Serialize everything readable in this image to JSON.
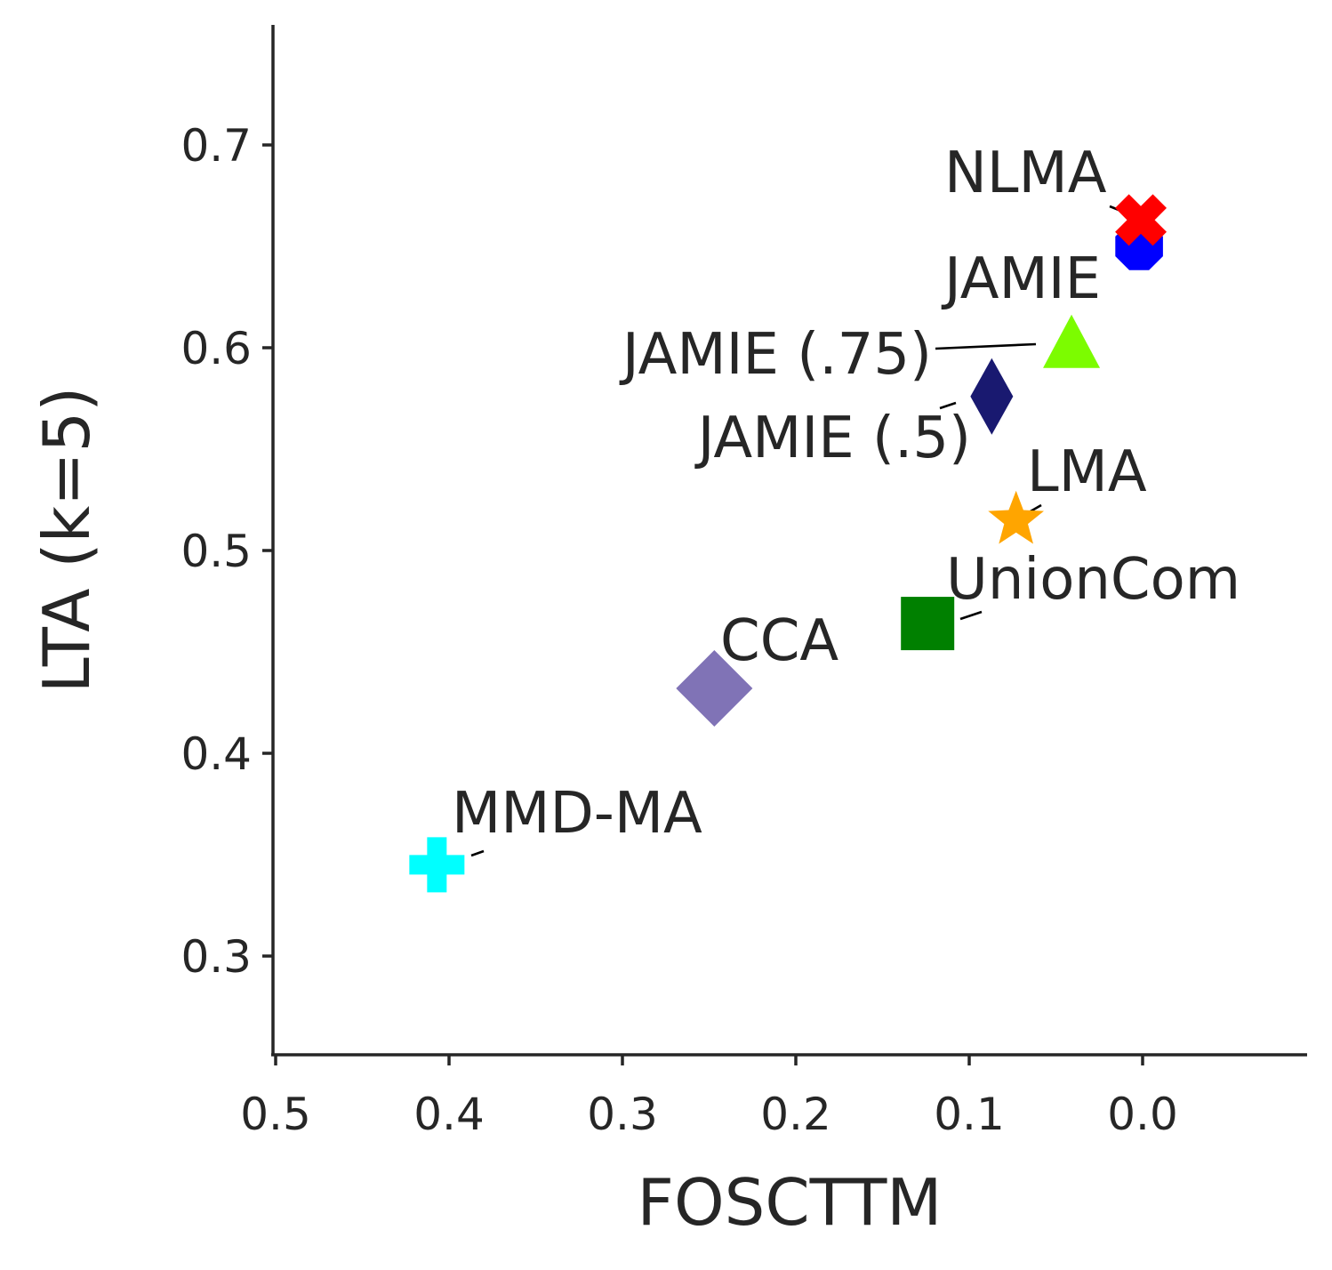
{
  "chart_data": {
    "type": "scatter",
    "xlabel": "FOSCTTM",
    "ylabel": "LTA (k=5)",
    "x_inverted": true,
    "xlim": [
      0.5,
      -0.095
    ],
    "ylim": [
      0.252,
      0.758
    ],
    "xticks": [
      "0.5",
      "0.4",
      "0.3",
      "0.2",
      "0.1",
      "0.0"
    ],
    "yticks": [
      "0.3",
      "0.4",
      "0.5",
      "0.6",
      "0.7"
    ],
    "grid": false,
    "legend": "none",
    "points": [
      {
        "label": "NLMA",
        "x": 0.001,
        "y": 0.663,
        "marker": "x-filled",
        "color": "#ff0000"
      },
      {
        "label": "JAMIE",
        "x": 0.002,
        "y": 0.65,
        "marker": "octagon",
        "color": "#0000ff"
      },
      {
        "label": "JAMIE (.75)",
        "x": 0.041,
        "y": 0.601,
        "marker": "triangle",
        "color": "#7cfc00"
      },
      {
        "label": "JAMIE (.5)",
        "x": 0.087,
        "y": 0.576,
        "marker": "thin-diamond",
        "color": "#191970"
      },
      {
        "label": "LMA",
        "x": 0.073,
        "y": 0.515,
        "marker": "star",
        "color": "#ffa500"
      },
      {
        "label": "UnionCom",
        "x": 0.124,
        "y": 0.464,
        "marker": "square",
        "color": "#008000"
      },
      {
        "label": "CCA",
        "x": 0.247,
        "y": 0.432,
        "marker": "diamond",
        "color": "#8073b6"
      },
      {
        "label": "MMD-MA",
        "x": 0.407,
        "y": 0.345,
        "marker": "plus-filled",
        "color": "#00ffff"
      }
    ]
  }
}
